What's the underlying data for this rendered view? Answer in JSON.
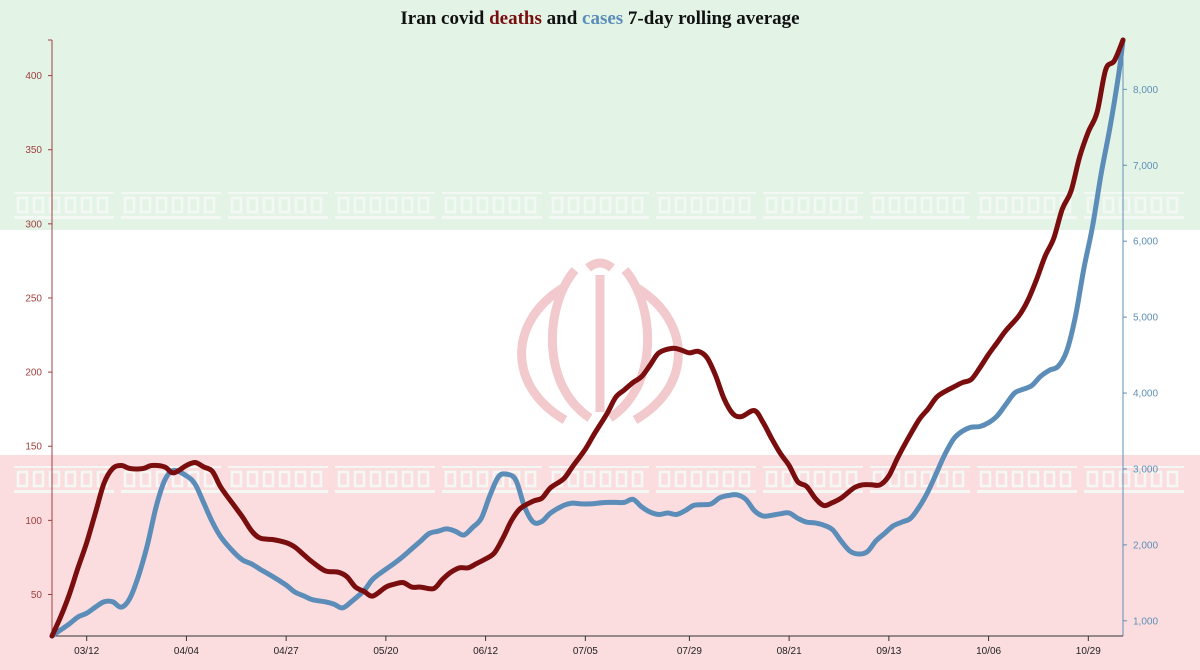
{
  "title": {
    "prefix": "Iran covid ",
    "deaths_word": "deaths",
    "connector": " and ",
    "cases_word": "cases",
    "suffix": " 7-day rolling average"
  },
  "colors": {
    "deaths": "#7a0d0d",
    "cases": "#5b8db8",
    "left_axis": "#a04040",
    "right_axis": "#5f8fb5",
    "flag_green": "#e3f4e7",
    "flag_white": "#ffffff",
    "flag_red": "#fbdde0",
    "emblem": "#f2c9cc",
    "band_text": "#f4f8f5"
  },
  "chart_data": {
    "type": "line",
    "title": "Iran covid deaths and cases 7-day rolling average",
    "x_start": "03/04",
    "x_end": "11/06",
    "x_ticks": [
      "03/12",
      "04/04",
      "04/27",
      "05/20",
      "06/12",
      "07/05",
      "07/29",
      "08/21",
      "09/13",
      "10/06",
      "10/29"
    ],
    "left_axis": {
      "ylim": [
        22,
        424
      ],
      "ticks": [
        50,
        100,
        150,
        200,
        250,
        300,
        350,
        400
      ]
    },
    "right_axis": {
      "ylim": [
        800,
        8650
      ],
      "ticks": [
        1000,
        2000,
        3000,
        4000,
        5000,
        6000,
        7000,
        8000
      ],
      "tick_labels": [
        "1,000",
        "2,000",
        "3,000",
        "4,000",
        "5,000",
        "6,000",
        "7,000",
        "8,000"
      ]
    },
    "grid": false,
    "legend": "none (title words colored by series)",
    "series": [
      {
        "name": "deaths",
        "axis": "left",
        "points": [
          [
            "03/04",
            22
          ],
          [
            "03/06",
            35
          ],
          [
            "03/08",
            50
          ],
          [
            "03/10",
            68
          ],
          [
            "03/12",
            85
          ],
          [
            "03/14",
            105
          ],
          [
            "03/16",
            125
          ],
          [
            "03/18",
            135
          ],
          [
            "03/20",
            137
          ],
          [
            "03/22",
            135
          ],
          [
            "03/25",
            135
          ],
          [
            "03/27",
            137
          ],
          [
            "03/30",
            136
          ],
          [
            "04/01",
            132
          ],
          [
            "04/04",
            137
          ],
          [
            "04/06",
            139
          ],
          [
            "04/08",
            136
          ],
          [
            "04/10",
            133
          ],
          [
            "04/12",
            122
          ],
          [
            "04/15",
            110
          ],
          [
            "04/17",
            102
          ],
          [
            "04/19",
            93
          ],
          [
            "04/21",
            88
          ],
          [
            "04/24",
            87
          ],
          [
            "04/27",
            85
          ],
          [
            "04/29",
            82
          ],
          [
            "05/01",
            77
          ],
          [
            "05/03",
            72
          ],
          [
            "05/06",
            66
          ],
          [
            "05/09",
            65
          ],
          [
            "05/11",
            62
          ],
          [
            "05/13",
            55
          ],
          [
            "05/15",
            52
          ],
          [
            "05/17",
            49
          ],
          [
            "05/20",
            55
          ],
          [
            "05/22",
            57
          ],
          [
            "05/24",
            58
          ],
          [
            "05/26",
            55
          ],
          [
            "05/28",
            55
          ],
          [
            "05/31",
            54
          ],
          [
            "06/02",
            60
          ],
          [
            "06/04",
            65
          ],
          [
            "06/06",
            68
          ],
          [
            "06/08",
            68
          ],
          [
            "06/10",
            71
          ],
          [
            "06/12",
            74
          ],
          [
            "06/14",
            78
          ],
          [
            "06/16",
            88
          ],
          [
            "06/18",
            100
          ],
          [
            "06/20",
            108
          ],
          [
            "06/23",
            113
          ],
          [
            "06/25",
            115
          ],
          [
            "06/27",
            122
          ],
          [
            "06/30",
            128
          ],
          [
            "07/02",
            136
          ],
          [
            "07/05",
            148
          ],
          [
            "07/07",
            158
          ],
          [
            "07/10",
            172
          ],
          [
            "07/12",
            183
          ],
          [
            "07/14",
            188
          ],
          [
            "07/16",
            193
          ],
          [
            "07/18",
            197
          ],
          [
            "07/20",
            205
          ],
          [
            "07/22",
            213
          ],
          [
            "07/25",
            216
          ],
          [
            "07/27",
            215
          ],
          [
            "07/29",
            213
          ],
          [
            "07/31",
            214
          ],
          [
            "08/02",
            210
          ],
          [
            "08/04",
            198
          ],
          [
            "08/06",
            182
          ],
          [
            "08/08",
            172
          ],
          [
            "08/10",
            170
          ],
          [
            "08/13",
            174
          ],
          [
            "08/15",
            166
          ],
          [
            "08/17",
            155
          ],
          [
            "08/19",
            145
          ],
          [
            "08/21",
            137
          ],
          [
            "08/23",
            126
          ],
          [
            "08/25",
            123
          ],
          [
            "08/27",
            115
          ],
          [
            "08/29",
            110
          ],
          [
            "08/31",
            112
          ],
          [
            "09/02",
            115
          ],
          [
            "09/05",
            122
          ],
          [
            "09/07",
            124
          ],
          [
            "09/09",
            124
          ],
          [
            "09/11",
            124
          ],
          [
            "09/13",
            130
          ],
          [
            "09/15",
            142
          ],
          [
            "09/17",
            153
          ],
          [
            "09/20",
            168
          ],
          [
            "09/22",
            175
          ],
          [
            "09/24",
            183
          ],
          [
            "09/26",
            187
          ],
          [
            "09/28",
            190
          ],
          [
            "09/30",
            193
          ],
          [
            "10/02",
            195
          ],
          [
            "10/04",
            203
          ],
          [
            "10/06",
            212
          ],
          [
            "10/08",
            220
          ],
          [
            "10/10",
            228
          ],
          [
            "10/13",
            238
          ],
          [
            "10/15",
            248
          ],
          [
            "10/17",
            262
          ],
          [
            "10/19",
            278
          ],
          [
            "10/21",
            290
          ],
          [
            "10/23",
            310
          ],
          [
            "10/25",
            322
          ],
          [
            "10/27",
            345
          ],
          [
            "10/29",
            362
          ],
          [
            "10/31",
            375
          ],
          [
            "11/02",
            404
          ],
          [
            "11/04",
            410
          ],
          [
            "11/06",
            424
          ]
        ]
      },
      {
        "name": "cases",
        "axis": "right",
        "points": [
          [
            "03/04",
            800
          ],
          [
            "03/06",
            880
          ],
          [
            "03/08",
            960
          ],
          [
            "03/10",
            1050
          ],
          [
            "03/12",
            1100
          ],
          [
            "03/14",
            1180
          ],
          [
            "03/16",
            1250
          ],
          [
            "03/18",
            1250
          ],
          [
            "03/20",
            1180
          ],
          [
            "03/22",
            1300
          ],
          [
            "03/24",
            1600
          ],
          [
            "03/26",
            2000
          ],
          [
            "03/28",
            2500
          ],
          [
            "03/30",
            2850
          ],
          [
            "04/01",
            2980
          ],
          [
            "04/04",
            2910
          ],
          [
            "04/06",
            2800
          ],
          [
            "04/08",
            2550
          ],
          [
            "04/10",
            2300
          ],
          [
            "04/12",
            2100
          ],
          [
            "04/15",
            1900
          ],
          [
            "04/17",
            1800
          ],
          [
            "04/19",
            1750
          ],
          [
            "04/21",
            1680
          ],
          [
            "04/24",
            1580
          ],
          [
            "04/27",
            1470
          ],
          [
            "04/29",
            1380
          ],
          [
            "05/01",
            1330
          ],
          [
            "05/03",
            1280
          ],
          [
            "05/06",
            1250
          ],
          [
            "05/08",
            1220
          ],
          [
            "05/10",
            1170
          ],
          [
            "05/12",
            1250
          ],
          [
            "05/15",
            1400
          ],
          [
            "05/17",
            1550
          ],
          [
            "05/20",
            1680
          ],
          [
            "05/22",
            1760
          ],
          [
            "05/24",
            1850
          ],
          [
            "05/26",
            1950
          ],
          [
            "05/28",
            2050
          ],
          [
            "05/30",
            2150
          ],
          [
            "06/01",
            2180
          ],
          [
            "06/03",
            2210
          ],
          [
            "06/05",
            2180
          ],
          [
            "06/07",
            2130
          ],
          [
            "06/09",
            2230
          ],
          [
            "06/11",
            2350
          ],
          [
            "06/13",
            2650
          ],
          [
            "06/15",
            2900
          ],
          [
            "06/17",
            2930
          ],
          [
            "06/19",
            2850
          ],
          [
            "06/21",
            2500
          ],
          [
            "06/23",
            2300
          ],
          [
            "06/25",
            2310
          ],
          [
            "06/27",
            2420
          ],
          [
            "06/30",
            2520
          ],
          [
            "07/02",
            2550
          ],
          [
            "07/04",
            2540
          ],
          [
            "07/06",
            2540
          ],
          [
            "07/08",
            2550
          ],
          [
            "07/10",
            2560
          ],
          [
            "07/12",
            2560
          ],
          [
            "07/14",
            2560
          ],
          [
            "07/16",
            2600
          ],
          [
            "07/18",
            2500
          ],
          [
            "07/20",
            2430
          ],
          [
            "07/22",
            2400
          ],
          [
            "07/24",
            2420
          ],
          [
            "07/26",
            2400
          ],
          [
            "07/28",
            2450
          ],
          [
            "07/30",
            2520
          ],
          [
            "08/01",
            2530
          ],
          [
            "08/03",
            2540
          ],
          [
            "08/05",
            2620
          ],
          [
            "08/07",
            2650
          ],
          [
            "08/09",
            2660
          ],
          [
            "08/11",
            2600
          ],
          [
            "08/13",
            2450
          ],
          [
            "08/15",
            2380
          ],
          [
            "08/17",
            2390
          ],
          [
            "08/19",
            2410
          ],
          [
            "08/21",
            2420
          ],
          [
            "08/23",
            2350
          ],
          [
            "08/25",
            2300
          ],
          [
            "08/27",
            2290
          ],
          [
            "08/29",
            2260
          ],
          [
            "08/31",
            2200
          ],
          [
            "09/02",
            2050
          ],
          [
            "09/04",
            1920
          ],
          [
            "09/06",
            1880
          ],
          [
            "09/08",
            1910
          ],
          [
            "09/10",
            2050
          ],
          [
            "09/12",
            2150
          ],
          [
            "09/14",
            2250
          ],
          [
            "09/16",
            2300
          ],
          [
            "09/18",
            2350
          ],
          [
            "09/20",
            2500
          ],
          [
            "09/22",
            2700
          ],
          [
            "09/24",
            2950
          ],
          [
            "09/26",
            3200
          ],
          [
            "09/28",
            3400
          ],
          [
            "09/30",
            3500
          ],
          [
            "10/02",
            3550
          ],
          [
            "10/04",
            3560
          ],
          [
            "10/06",
            3610
          ],
          [
            "10/08",
            3700
          ],
          [
            "10/10",
            3850
          ],
          [
            "10/12",
            4000
          ],
          [
            "10/14",
            4050
          ],
          [
            "10/16",
            4100
          ],
          [
            "10/18",
            4220
          ],
          [
            "10/20",
            4300
          ],
          [
            "10/22",
            4350
          ],
          [
            "10/24",
            4550
          ],
          [
            "10/26",
            5000
          ],
          [
            "10/28",
            5650
          ],
          [
            "10/30",
            6200
          ],
          [
            "11/01",
            6900
          ],
          [
            "11/03",
            7500
          ],
          [
            "11/05",
            8200
          ],
          [
            "11/06",
            8650
          ]
        ]
      }
    ]
  }
}
